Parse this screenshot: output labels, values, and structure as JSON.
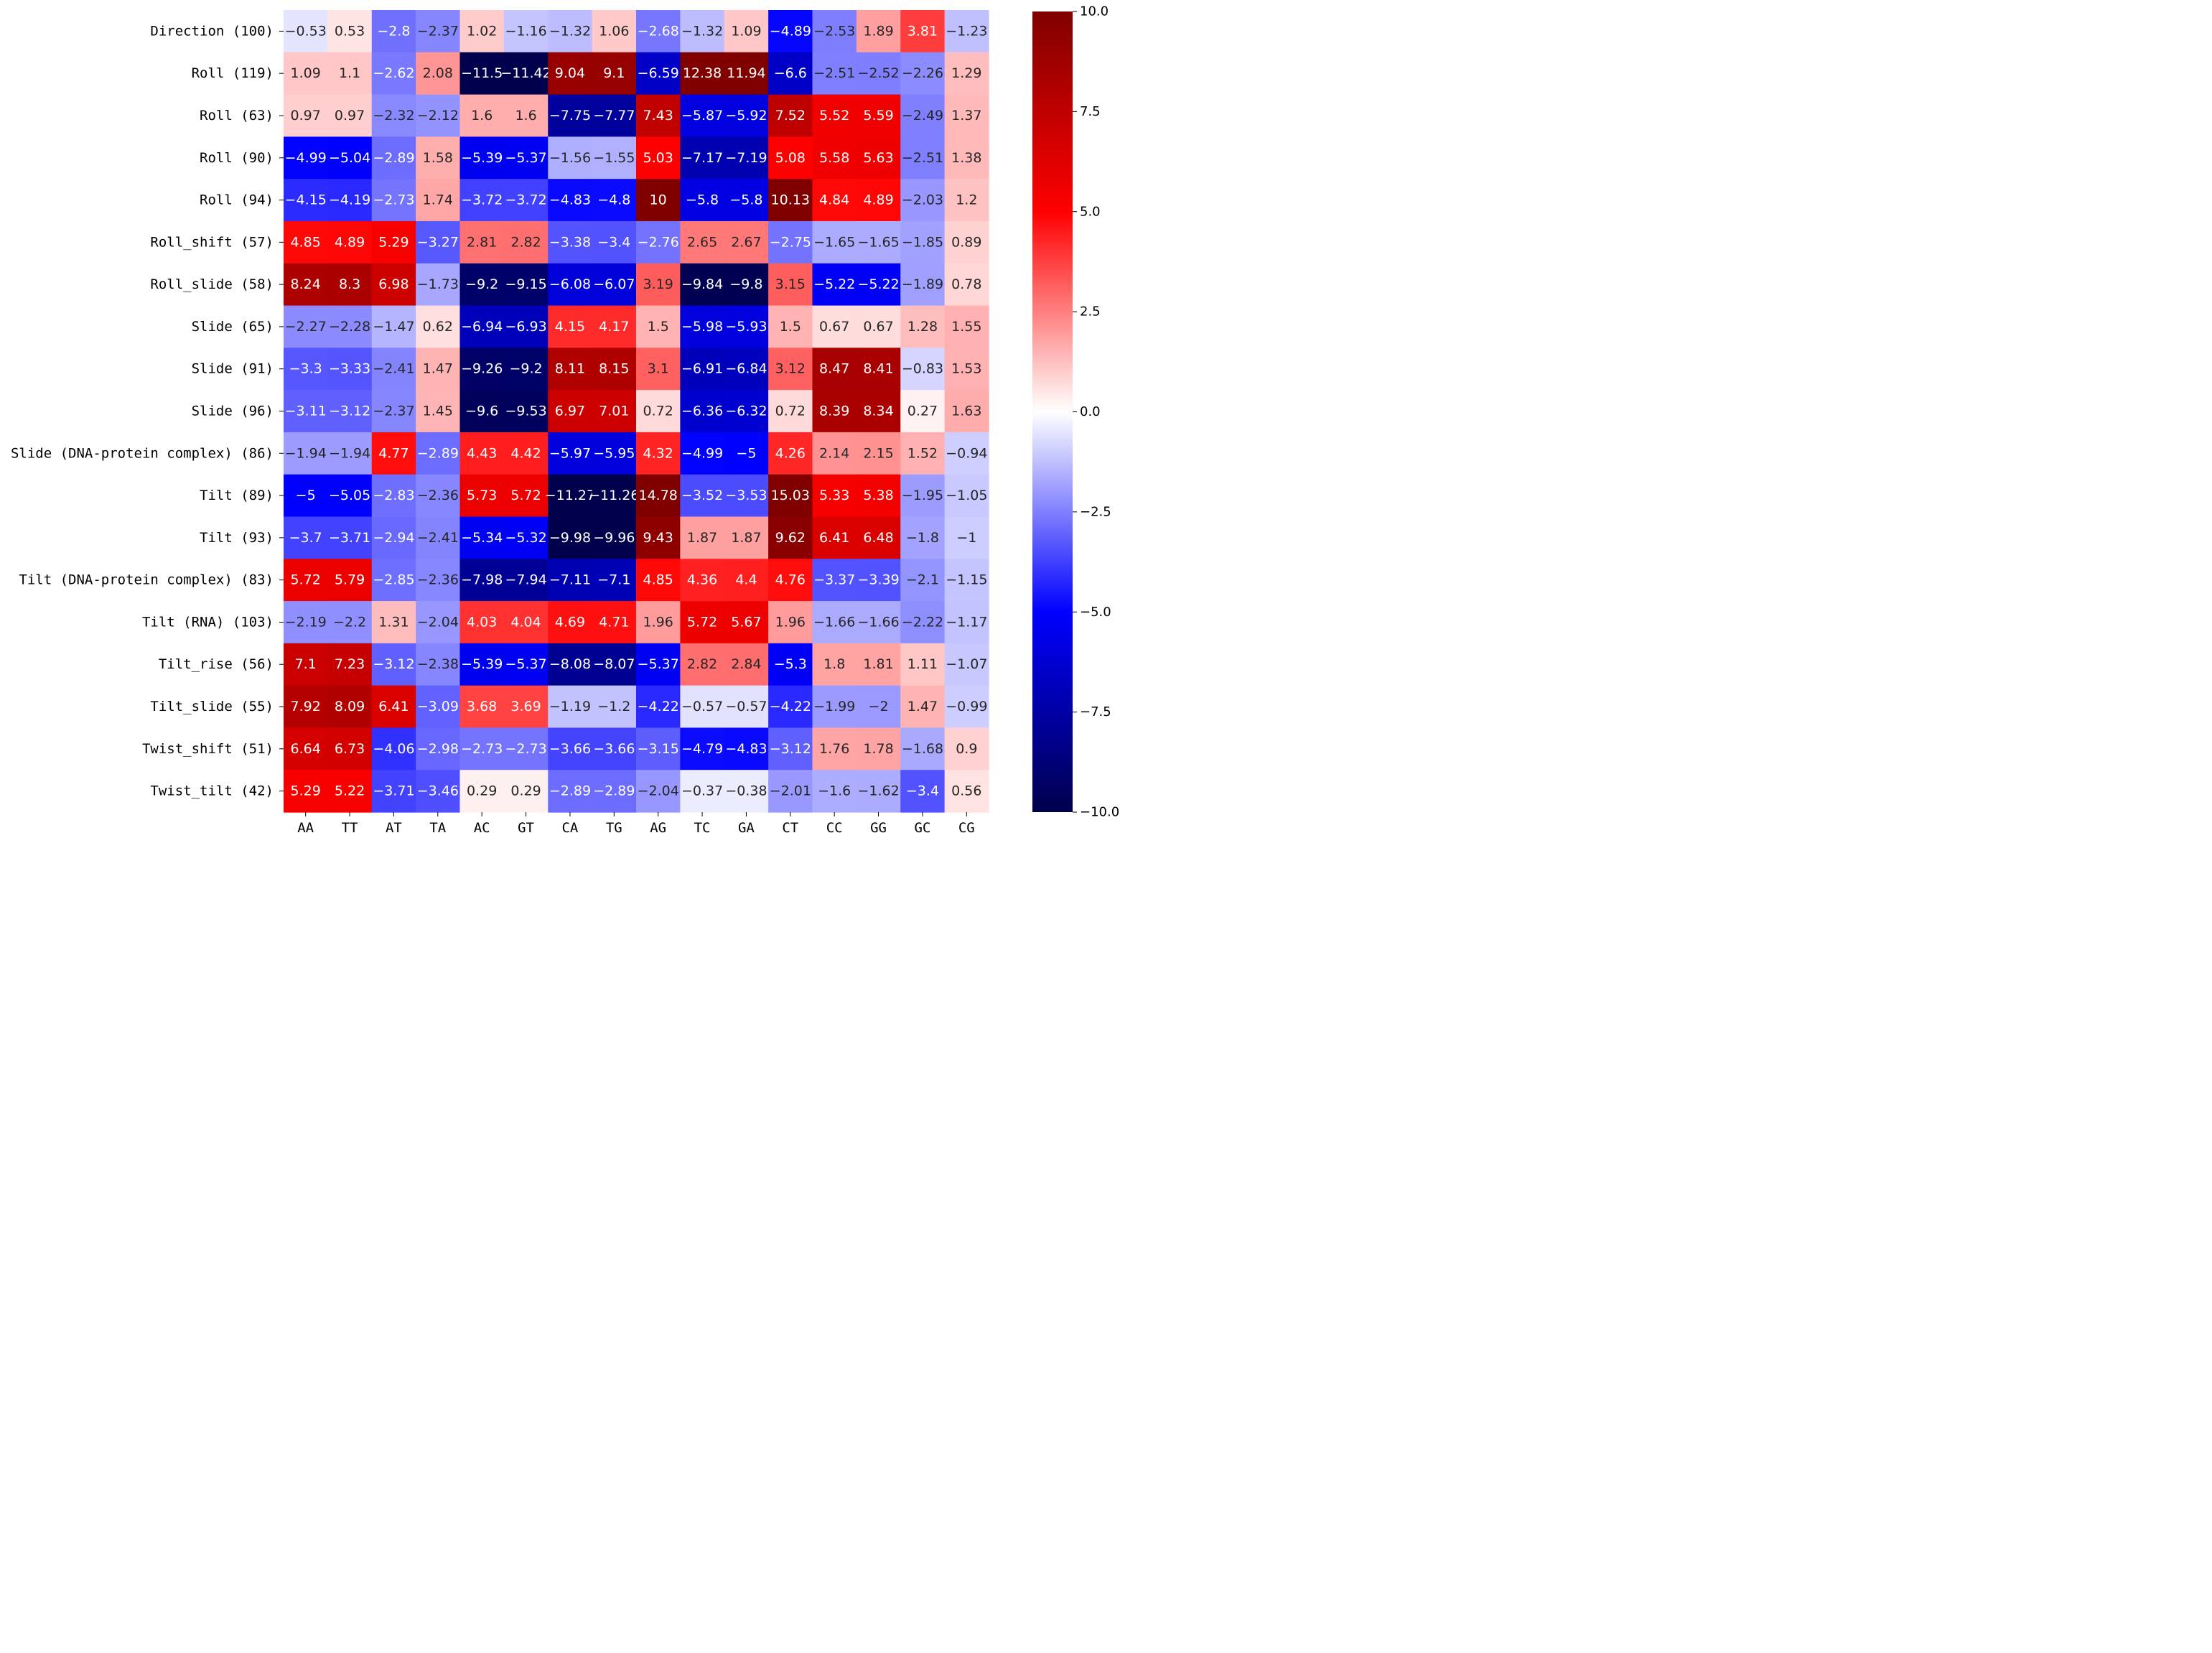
{
  "chart_data": {
    "type": "heatmap",
    "title": "",
    "xlabel": "",
    "ylabel": "",
    "columns": [
      "AA",
      "TT",
      "AT",
      "TA",
      "AC",
      "GT",
      "CA",
      "TG",
      "AG",
      "TC",
      "GA",
      "CT",
      "CC",
      "GG",
      "GC",
      "CG"
    ],
    "rows": [
      "Direction (100)",
      "Roll (119)",
      "Roll (63)",
      "Roll (90)",
      "Roll (94)",
      "Roll_shift (57)",
      "Roll_slide (58)",
      "Slide (65)",
      "Slide (91)",
      "Slide (96)",
      "Slide (DNA-protein complex) (86)",
      "Tilt (89)",
      "Tilt (93)",
      "Tilt (DNA-protein complex) (83)",
      "Tilt (RNA) (103)",
      "Tilt_rise (56)",
      "Tilt_slide (55)",
      "Twist_shift (51)",
      "Twist_tilt (42)"
    ],
    "values": [
      [
        -0.53,
        0.53,
        -2.8,
        -2.37,
        1.02,
        -1.16,
        -1.32,
        1.06,
        -2.68,
        -1.32,
        1.09,
        -4.89,
        -2.53,
        1.89,
        3.81,
        -1.23
      ],
      [
        1.09,
        1.1,
        -2.62,
        2.08,
        -11.5,
        -11.42,
        9.04,
        9.1,
        -6.59,
        12.38,
        11.94,
        -6.6,
        -2.51,
        -2.52,
        -2.26,
        1.29
      ],
      [
        0.97,
        0.97,
        -2.32,
        -2.12,
        1.6,
        1.6,
        -7.75,
        -7.77,
        7.43,
        -5.87,
        -5.92,
        7.52,
        5.52,
        5.59,
        -2.49,
        1.37
      ],
      [
        -4.99,
        -5.04,
        -2.89,
        1.58,
        -5.39,
        -5.37,
        -1.56,
        -1.55,
        5.03,
        -7.17,
        -7.19,
        5.08,
        5.58,
        5.63,
        -2.51,
        1.38
      ],
      [
        -4.15,
        -4.19,
        -2.73,
        1.74,
        -3.72,
        -3.72,
        -4.83,
        -4.8,
        10.0,
        -5.8,
        -5.8,
        10.13,
        4.84,
        4.89,
        -2.03,
        1.2
      ],
      [
        4.85,
        4.89,
        5.29,
        -3.27,
        2.81,
        2.82,
        -3.38,
        -3.4,
        -2.76,
        2.65,
        2.67,
        -2.75,
        -1.65,
        -1.65,
        -1.85,
        0.89
      ],
      [
        8.24,
        8.3,
        6.98,
        -1.73,
        -9.2,
        -9.15,
        -6.08,
        -6.07,
        3.19,
        -9.84,
        -9.8,
        3.15,
        -5.22,
        -5.22,
        -1.89,
        0.78
      ],
      [
        -2.27,
        -2.28,
        -1.47,
        0.62,
        -6.94,
        -6.93,
        4.15,
        4.17,
        1.5,
        -5.98,
        -5.93,
        1.5,
        0.67,
        0.67,
        1.28,
        1.55
      ],
      [
        -3.3,
        -3.33,
        -2.41,
        1.47,
        -9.26,
        -9.2,
        8.11,
        8.15,
        3.1,
        -6.91,
        -6.84,
        3.12,
        8.47,
        8.41,
        -0.83,
        1.53
      ],
      [
        -3.11,
        -3.12,
        -2.37,
        1.45,
        -9.6,
        -9.53,
        6.97,
        7.01,
        0.72,
        -6.36,
        -6.32,
        0.72,
        8.39,
        8.34,
        0.27,
        1.63
      ],
      [
        -1.94,
        -1.94,
        4.77,
        -2.89,
        4.43,
        4.42,
        -5.97,
        -5.95,
        4.32,
        -4.99,
        -5.0,
        4.26,
        2.14,
        2.15,
        1.52,
        -0.94
      ],
      [
        -5.0,
        -5.05,
        -2.83,
        -2.36,
        5.73,
        5.72,
        -11.27,
        -11.26,
        14.78,
        -3.52,
        -3.53,
        15.03,
        5.33,
        5.38,
        -1.95,
        -1.05
      ],
      [
        -3.7,
        -3.71,
        -2.94,
        -2.41,
        -5.34,
        -5.32,
        -9.98,
        -9.96,
        9.43,
        1.87,
        1.87,
        9.62,
        6.41,
        6.48,
        -1.8,
        -1.0
      ],
      [
        5.72,
        5.79,
        -2.85,
        -2.36,
        -7.98,
        -7.94,
        -7.11,
        -7.1,
        4.85,
        4.36,
        4.4,
        4.76,
        -3.37,
        -3.39,
        -2.1,
        -1.15
      ],
      [
        -2.19,
        -2.2,
        1.31,
        -2.04,
        4.03,
        4.04,
        4.69,
        4.71,
        1.96,
        5.72,
        5.67,
        1.96,
        -1.66,
        -1.66,
        -2.22,
        -1.17
      ],
      [
        7.1,
        7.23,
        -3.12,
        -2.38,
        -5.39,
        -5.37,
        -8.08,
        -8.07,
        -5.37,
        2.82,
        2.84,
        -5.3,
        1.8,
        1.81,
        1.11,
        -1.07
      ],
      [
        7.92,
        8.09,
        6.41,
        -3.09,
        3.68,
        3.69,
        -1.19,
        -1.2,
        -4.22,
        -0.57,
        -0.57,
        -4.22,
        -1.99,
        -2.0,
        1.47,
        -0.99
      ],
      [
        6.64,
        6.73,
        -4.06,
        -2.98,
        -2.73,
        -2.73,
        -3.66,
        -3.66,
        -3.15,
        -4.79,
        -4.83,
        -3.12,
        1.76,
        1.78,
        -1.68,
        0.9
      ],
      [
        5.29,
        5.22,
        -3.71,
        -3.46,
        0.29,
        0.29,
        -2.89,
        -2.89,
        -2.04,
        -0.37,
        -0.38,
        -2.01,
        -1.6,
        -1.62,
        -3.4,
        0.56
      ]
    ],
    "colormap": "seismic",
    "vmin": -10.0,
    "vmax": 10.0,
    "colorbar_ticks": [
      10.0,
      7.5,
      5.0,
      2.5,
      0.0,
      -2.5,
      -5.0,
      -7.5,
      -10.0
    ],
    "colorbar_tick_labels": [
      "10.0",
      "7.5",
      "5.0",
      "2.5",
      "0.0",
      "−2.5",
      "−5.0",
      "−7.5",
      "−10.0"
    ]
  }
}
